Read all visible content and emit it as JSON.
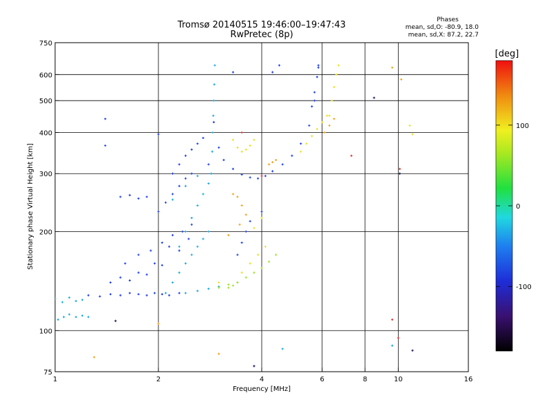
{
  "chart_data": {
    "type": "scatter",
    "title": "Tromsø 20140515 19:46:00–19:47:43",
    "subtitle": "RwPretec (8p)",
    "xlabel": "Frequency [MHz]",
    "ylabel": "Stationary phase Virtual Height [km]",
    "x_scale": "log",
    "y_scale": "log",
    "xlim": [
      1,
      16
    ],
    "ylim": [
      75,
      750
    ],
    "x_ticks": [
      1,
      2,
      4,
      6,
      8,
      10,
      16
    ],
    "x_tick_labels": [
      "1",
      "2",
      "4",
      "6",
      "8",
      "10",
      "16"
    ],
    "x_grid": [
      2,
      4,
      6,
      8,
      10
    ],
    "y_ticks": [
      75,
      100,
      200,
      300,
      400,
      500,
      600,
      750
    ],
    "y_tick_labels": [
      "75",
      "100",
      "200",
      "300",
      "400",
      "500",
      "600",
      "750"
    ],
    "y_grid": [
      100,
      200,
      300,
      400,
      500,
      600
    ],
    "grid": true,
    "info": {
      "heading": "Phases",
      "line1": "mean, sd,O: -80.9, 18.0",
      "line2": "mean, sd,X: 87.2, 22.7"
    },
    "colorbar": {
      "label": "[deg]",
      "range": [
        -180,
        180
      ],
      "ticks": [
        100,
        0,
        -100
      ],
      "tick_labels": [
        "100",
        "0",
        "-100"
      ],
      "position": "right"
    },
    "series": [
      {
        "color": "#1f3fe6",
        "traces": [
          {
            "x": [
              1.25,
              1.35,
              1.45,
              1.55,
              1.65,
              1.75,
              1.85,
              1.95,
              2.05,
              2.15,
              2.3
            ],
            "y": [
              128,
              127,
              129,
              128,
              130,
              129,
              128,
              130,
              129,
              128,
              130
            ]
          },
          {
            "x": [
              1.45,
              1.55,
              1.65,
              1.75,
              1.85,
              1.95,
              2.05,
              2.15,
              2.3,
              2.45
            ],
            "y": [
              140,
              145,
              142,
              150,
              148,
              160,
              158,
              180,
              175,
              190
            ]
          },
          {
            "x": [
              1.6,
              1.75,
              1.9,
              2.05,
              2.2,
              2.35,
              2.5
            ],
            "y": [
              160,
              170,
              175,
              185,
              195,
              200,
              210
            ]
          },
          {
            "x": [
              1.55,
              1.65,
              1.75,
              1.85
            ],
            "y": [
              255,
              258,
              252,
              255
            ]
          },
          {
            "x": [
              2.0,
              2.1,
              2.2,
              2.3,
              2.4,
              2.5
            ],
            "y": [
              230,
              245,
              260,
              275,
              290,
              300
            ]
          },
          {
            "x": [
              2.2,
              2.3,
              2.4,
              2.5,
              2.6,
              2.7
            ],
            "y": [
              300,
              320,
              340,
              355,
              370,
              385
            ]
          },
          {
            "x": [
              2.9,
              3.0,
              3.1,
              3.3,
              3.5,
              3.7,
              3.9,
              4.1,
              4.3,
              4.6,
              4.9,
              5.2,
              5.5,
              5.7,
              5.85
            ],
            "y": [
              430,
              360,
              330,
              310,
              298,
              292,
              290,
              295,
              305,
              320,
              340,
              370,
              420,
              500,
              640
            ]
          },
          {
            "x": [
              3.4,
              3.5,
              3.6,
              3.7
            ],
            "y": [
              170,
              185,
              200,
              215
            ]
          },
          {
            "x": [
              5.6,
              5.7,
              5.8,
              5.85
            ],
            "y": [
              480,
              530,
              590,
              630
            ]
          },
          {
            "x": [
              2.0,
              2.8,
              3.3,
              1.4,
              1.4,
              4.5,
              4.3,
              4.0
            ],
            "y": [
              395,
              320,
              610,
              440,
              365,
              640,
              610,
              230
            ]
          }
        ]
      },
      {
        "color": "#1aa8e0",
        "traces": [
          {
            "x": [
              1.0,
              1.05,
              1.1,
              1.15,
              1.2
            ],
            "y": [
              125,
              122,
              126,
              123,
              124
            ]
          },
          {
            "x": [
              1.02,
              1.06,
              1.1
            ],
            "y": [
              108,
              110,
              112
            ]
          },
          {
            "x": [
              1.15,
              1.2,
              1.25
            ],
            "y": [
              110,
              111,
              110
            ]
          },
          {
            "x": [
              2.85,
              2.87,
              2.88,
              2.89,
              2.9,
              2.91,
              2.92
            ],
            "y": [
              300,
              350,
              400,
              450,
              500,
              560,
              640
            ]
          },
          {
            "x": [
              2.3,
              2.4,
              2.5,
              2.6,
              2.7,
              2.8
            ],
            "y": [
              180,
              200,
              220,
              240,
              260,
              280
            ]
          },
          {
            "x": [
              2.1,
              2.2,
              2.3,
              2.4,
              2.5,
              2.6,
              2.7,
              2.8
            ],
            "y": [
              130,
              140,
              150,
              160,
              170,
              180,
              190,
              200
            ]
          },
          {
            "x": [
              2.4,
              2.6,
              2.8,
              3.0
            ],
            "y": [
              130,
              132,
              134,
              136
            ]
          },
          {
            "x": [
              2.2,
              2.4,
              2.6
            ],
            "y": [
              250,
              275,
              295
            ]
          },
          {
            "x": [
              9.6,
              4.6
            ],
            "y": [
              90,
              88
            ]
          }
        ]
      },
      {
        "color": "#e8e020",
        "traces": [
          {
            "x": [
              3.3,
              3.4,
              3.5,
              3.6,
              3.7,
              3.8
            ],
            "y": [
              380,
              360,
              350,
              355,
              365,
              380
            ]
          },
          {
            "x": [
              5.2,
              5.4,
              5.6,
              5.8,
              6.0,
              6.2
            ],
            "y": [
              350,
              370,
              390,
              410,
              430,
              450
            ]
          },
          {
            "x": [
              6.3,
              6.4,
              6.5,
              6.6,
              6.7
            ],
            "y": [
              450,
              500,
              550,
              600,
              640
            ]
          },
          {
            "x": [
              3.5,
              3.7,
              3.9,
              4.1
            ],
            "y": [
              150,
              160,
              170,
              180
            ]
          },
          {
            "x": [
              3.0,
              4.0,
              3.8
            ],
            "y": [
              140,
              220,
              205
            ]
          },
          {
            "x": [
              11.0,
              10.8
            ],
            "y": [
              395,
              420
            ]
          }
        ]
      },
      {
        "color": "#9ee02a",
        "traces": [
          {
            "x": [
              3.0,
              3.2,
              3.4,
              3.6,
              3.8,
              4.0,
              4.2,
              4.4
            ],
            "y": [
              135,
              138,
              140,
              145,
              150,
              155,
              162,
              170
            ]
          },
          {
            "x": [
              3.2,
              3.3,
              3.4
            ],
            "y": [
              135,
              137,
              140
            ]
          }
        ]
      },
      {
        "color": "#f0a018",
        "traces": [
          {
            "x": [
              3.3,
              3.4,
              3.5,
              3.6
            ],
            "y": [
              260,
              255,
              240,
              225
            ]
          },
          {
            "x": [
              4.2,
              4.3,
              4.4
            ],
            "y": [
              320,
              325,
              330
            ]
          },
          {
            "x": [
              6.1,
              6.3,
              6.5
            ],
            "y": [
              400,
              420,
              440
            ]
          },
          {
            "x": [
              3.2,
              3.45
            ],
            "y": [
              195,
              210
            ]
          },
          {
            "x": [
              9.6,
              10.2,
              2.0,
              1.3,
              3.0
            ],
            "y": [
              630,
              580,
              105,
              83,
              85
            ]
          }
        ]
      },
      {
        "color": "#e03030",
        "traces": [
          {
            "x": [
              3.5,
              7.3,
              10.0,
              9.6
            ],
            "y": [
              400,
              340,
              95,
              108
            ]
          },
          {
            "x": [
              10.1,
              4.0
            ],
            "y": [
              310,
              295
            ]
          }
        ]
      },
      {
        "color": "#101060",
        "traces": [
          {
            "x": [
              3.8,
              11.0,
              1.5,
              10.1,
              8.5
            ],
            "y": [
              78,
              87,
              107,
              300,
              510
            ]
          }
        ]
      }
    ]
  }
}
